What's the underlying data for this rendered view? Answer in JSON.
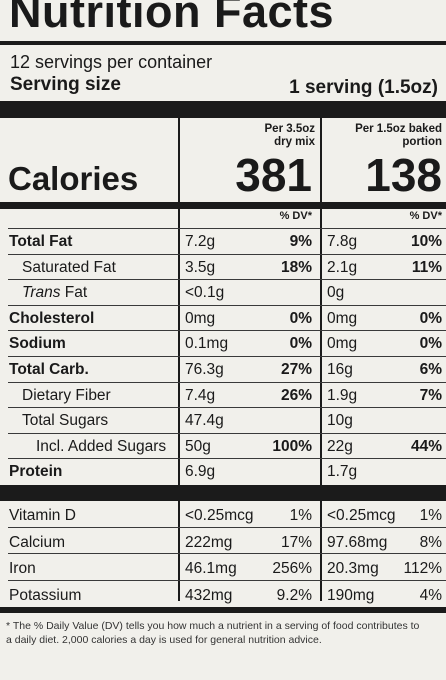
{
  "title": "Nutrition Facts",
  "servings_per_container": "12 servings per container",
  "serving_size": {
    "label": "Serving size",
    "value": "1 serving (1.5oz)"
  },
  "columns": [
    {
      "header_line1": "Per 3.5oz",
      "header_line2": "dry mix",
      "calories": "381"
    },
    {
      "header_line1": "Per 1.5oz baked",
      "header_line2": "portion",
      "calories": "138"
    }
  ],
  "calories_label": "Calories",
  "dv_header": "% DV*",
  "nutrients": [
    {
      "name": "Total Fat",
      "bold": true,
      "amount1": "7.2g",
      "dv1": "9%",
      "amount2": "7.8g",
      "dv2": "10%"
    },
    {
      "name": "Saturated Fat",
      "indent": 1,
      "amount1": "3.5g",
      "dv1": "18%",
      "amount2": "2.1g",
      "dv2": "11%"
    },
    {
      "name_italic": "Trans",
      "name_suffix": " Fat",
      "indent": 1,
      "amount1": "<0.1g",
      "dv1": "",
      "amount2": "0g",
      "dv2": ""
    },
    {
      "name": "Cholesterol",
      "bold": true,
      "amount1": "0mg",
      "dv1": "0%",
      "amount2": "0mg",
      "dv2": "0%"
    },
    {
      "name": "Sodium",
      "bold": true,
      "amount1": "0.1mg",
      "dv1": "0%",
      "amount2": "0mg",
      "dv2": "0%"
    },
    {
      "name": "Total Carb.",
      "bold": true,
      "amount1": "76.3g",
      "dv1": "27%",
      "amount2": "16g",
      "dv2": "6%"
    },
    {
      "name": "Dietary Fiber",
      "indent": 1,
      "amount1": "7.4g",
      "dv1": "26%",
      "amount2": "1.9g",
      "dv2": "7%"
    },
    {
      "name": "Total Sugars",
      "indent": 1,
      "amount1": "47.4g",
      "dv1": "",
      "amount2": "10g",
      "dv2": ""
    },
    {
      "name": "Incl. Added Sugars",
      "indent": 2,
      "amount1": "50g",
      "dv1": "100%",
      "amount2": "22g",
      "dv2": "44%"
    },
    {
      "name": "Protein",
      "bold": true,
      "amount1": "6.9g",
      "dv1": "",
      "amount2": "1.7g",
      "dv2": ""
    }
  ],
  "vitamins": [
    {
      "name": "Vitamin D",
      "amount1": "<0.25mcg",
      "dv1": "1%",
      "amount2": "<0.25mcg",
      "dv2": "1%"
    },
    {
      "name": "Calcium",
      "amount1": "222mg",
      "dv1": "17%",
      "amount2": "97.68mg",
      "dv2": "8%"
    },
    {
      "name": "Iron",
      "amount1": "46.1mg",
      "dv1": "256%",
      "amount2": "20.3mg",
      "dv2": "112%"
    },
    {
      "name": "Potassium",
      "amount1": "432mg",
      "dv1": "9.2%",
      "amount2": "190mg",
      "dv2": "4%"
    }
  ],
  "footnote": "* The % Daily Value (DV) tells you how much a nutrient in a serving of food contributes to a daily diet. 2,000 calories a day is used for general nutrition advice."
}
